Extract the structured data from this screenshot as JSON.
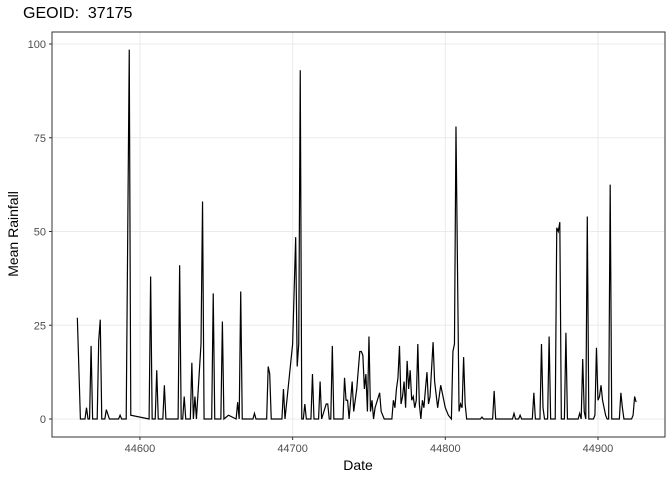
{
  "chart_data": {
    "type": "line",
    "title": "GEOID:  37175",
    "x_label": "Date",
    "y_label": "Mean Rainfall",
    "xlim": [
      44542.4,
      44943.9
    ],
    "ylim": [
      -4.8,
      103.2
    ],
    "xticks": [
      44600,
      44700,
      44800,
      44900
    ],
    "yticks": [
      0,
      25,
      50,
      75,
      100
    ],
    "grid": true,
    "series": [
      {
        "color": "#000000",
        "x": [
          44559,
          44561,
          44564,
          44565,
          44566,
          44567,
          44568,
          44569,
          44572,
          44573,
          44574,
          44575,
          44577,
          44578,
          44580,
          44586,
          44587,
          44588,
          44591,
          44593,
          44594,
          44606,
          44607,
          44608,
          44610,
          44611,
          44612,
          44615,
          44616,
          44617,
          44625,
          44626,
          44627,
          44628,
          44629,
          44630,
          44633,
          44634,
          44635,
          44636,
          44637,
          44640,
          44641,
          44642,
          44647,
          44648,
          44649,
          44653,
          44654,
          44655,
          44658,
          44663,
          44664,
          44665,
          44666,
          44667,
          44674,
          44675,
          44676,
          44683,
          44684,
          44685,
          44686,
          44693,
          44694,
          44695,
          44700,
          44702,
          44703,
          44704,
          44705,
          44706,
          44707,
          44708,
          44709,
          44712,
          44713,
          44714,
          44717,
          44718,
          44719,
          44722,
          44723,
          44724,
          44725,
          44726,
          44727,
          44733,
          44734,
          44735,
          44736,
          44737,
          44739,
          44740,
          44742,
          44744,
          44745,
          44746,
          44747,
          44748,
          44749,
          44750,
          44751,
          44752,
          44753,
          44754,
          44757,
          44758,
          44760,
          44765,
          44766,
          44767,
          44768,
          44769,
          44770,
          44771,
          44772,
          44773,
          44774,
          44775,
          44776,
          44777,
          44778,
          44779,
          44780,
          44781,
          44782,
          44783,
          44784,
          44785,
          44786,
          44787,
          44788,
          44789,
          44790,
          44792,
          44793,
          44795,
          44797,
          44798,
          44800,
          44802,
          44804,
          44805,
          44806,
          44807,
          44808,
          44809,
          44810,
          44811,
          44812,
          44813,
          44814,
          44823,
          44824,
          44825,
          44831,
          44832,
          44833,
          44844,
          44845,
          44846,
          44848,
          44849,
          44850,
          44857,
          44858,
          44859,
          44862,
          44863,
          44864,
          44865,
          44867,
          44868,
          44869,
          44872,
          44873,
          44874,
          44875,
          44876,
          44878,
          44879,
          44880,
          44887,
          44888,
          44889,
          44890,
          44891,
          44892,
          44893,
          44894,
          44897,
          44898,
          44899,
          44900,
          44901,
          44902,
          44903,
          44904,
          44905,
          44906,
          44907,
          44908,
          44909,
          44914,
          44915,
          44916,
          44917,
          44922,
          44923,
          44924,
          44925
        ],
        "values": [
          27,
          0,
          0,
          3,
          0,
          0,
          19.5,
          0,
          0,
          21,
          26.5,
          0,
          0,
          2.5,
          0,
          0,
          1,
          0,
          0,
          98.5,
          1,
          0,
          38,
          0,
          0,
          13,
          0,
          0,
          9,
          0,
          0,
          41,
          0,
          0,
          6,
          0,
          0,
          15,
          0,
          6,
          0,
          20,
          58,
          0,
          0,
          33.5,
          0,
          0,
          26,
          0,
          1,
          0,
          4.5,
          0,
          34,
          0,
          0,
          1.5,
          0,
          0,
          14,
          12,
          0,
          0,
          8,
          0,
          20,
          48.5,
          14,
          20,
          93,
          0,
          0,
          4,
          0,
          0,
          12,
          0,
          0,
          10,
          0,
          4,
          4,
          0,
          0,
          19.5,
          0,
          0,
          11,
          5,
          5,
          0,
          10,
          2,
          8,
          18,
          18,
          17,
          8,
          12,
          2,
          22,
          2,
          5,
          0,
          3,
          7,
          2,
          0,
          0,
          5,
          3,
          8,
          11,
          19.5,
          4,
          6,
          10,
          3,
          15.5,
          8,
          13,
          5,
          6,
          3,
          5,
          20,
          4,
          0,
          5,
          3,
          8,
          12.5,
          4,
          6,
          20.5,
          10,
          3,
          9,
          7,
          3,
          1,
          0,
          18,
          20,
          78,
          40,
          2,
          4,
          3,
          16.5,
          4,
          0,
          0,
          0.5,
          0,
          0,
          7.5,
          0,
          0,
          1.5,
          0,
          0,
          1,
          0,
          0,
          7,
          0,
          0,
          20,
          3,
          0,
          0,
          22,
          0,
          0,
          51,
          50,
          52.5,
          0,
          0,
          23,
          0,
          0,
          1.5,
          0,
          16,
          2,
          0,
          54,
          0,
          0,
          1,
          19,
          5,
          6,
          9,
          5,
          3,
          1,
          0,
          0,
          62.5,
          0,
          0,
          7,
          3,
          0,
          0,
          1,
          6,
          4.5
        ]
      }
    ]
  }
}
